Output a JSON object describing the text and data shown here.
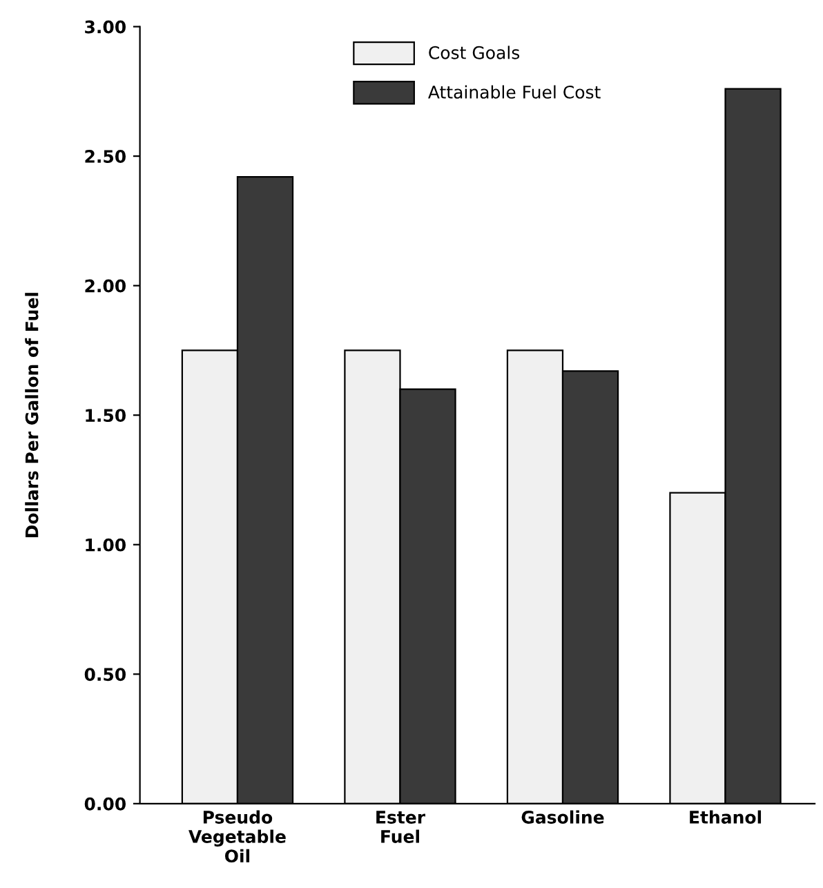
{
  "chart_data": {
    "type": "bar",
    "ylabel": "Dollars Per Gallon of Fuel",
    "categories": [
      "Pseudo\nVegetable\nOil",
      "Ester\nFuel",
      "Gasoline",
      "Ethanol"
    ],
    "series": [
      {
        "name": "Cost Goals",
        "color": "#f0f0f0",
        "values": [
          1.75,
          1.75,
          1.75,
          1.2
        ]
      },
      {
        "name": "Attainable Fuel Cost",
        "color": "#3a3a3a",
        "values": [
          2.42,
          1.6,
          1.67,
          2.76
        ]
      }
    ],
    "ylim": [
      0,
      3
    ],
    "yticks": [
      {
        "value": 0,
        "label": "0.00"
      },
      {
        "value": 0.5,
        "label": "0.50"
      },
      {
        "value": 1,
        "label": "1.00"
      },
      {
        "value": 1.5,
        "label": "1.50"
      },
      {
        "value": 2,
        "label": "2.00"
      },
      {
        "value": 2.5,
        "label": "2.50"
      },
      {
        "value": 3,
        "label": "3.00"
      }
    ],
    "grid": false,
    "legend": "top"
  }
}
